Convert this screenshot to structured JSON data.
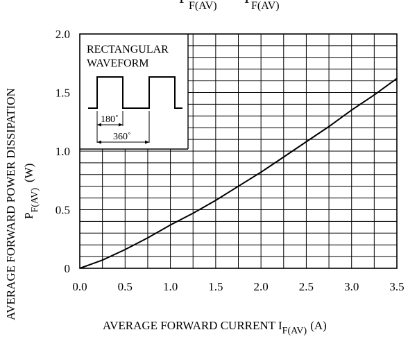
{
  "chart_data": {
    "type": "line",
    "title": {
      "main": "P",
      "sub": "F(AV)",
      "sep": "−",
      "main2": "I",
      "sub2": "F(AV)"
    },
    "xlabel": {
      "main": "AVERAGE FORWARD CURRENT I",
      "sub": "F(AV)",
      "unit": "(A)"
    },
    "ylabel": {
      "line1": "AVERAGE FORWARD POWER DISSIPATION",
      "main": "P",
      "sub": "F(AV)",
      "unit": "(W)"
    },
    "xlim": [
      0,
      3.5
    ],
    "ylim": [
      0,
      2.0
    ],
    "x_ticks": [
      "0.0",
      "0.5",
      "1.0",
      "1.5",
      "2.0",
      "2.5",
      "3.0",
      "3.5"
    ],
    "y_ticks": [
      "0",
      "0.5",
      "1.0",
      "1.5",
      "2.0"
    ],
    "grid": true,
    "series": [
      {
        "x": [
          0,
          0.25,
          0.5,
          0.75,
          1.0,
          1.25,
          1.5,
          1.75,
          2.0,
          2.25,
          2.5,
          2.75,
          3.0,
          3.25,
          3.5
        ],
        "y": [
          0,
          0.07,
          0.16,
          0.26,
          0.37,
          0.47,
          0.58,
          0.7,
          0.82,
          0.95,
          1.08,
          1.21,
          1.35,
          1.48,
          1.62
        ]
      }
    ],
    "inset": {
      "title_line1": "RECTANGULAR",
      "title_line2": "WAVEFORM",
      "dim1": "180˚",
      "dim2": "360˚"
    }
  }
}
